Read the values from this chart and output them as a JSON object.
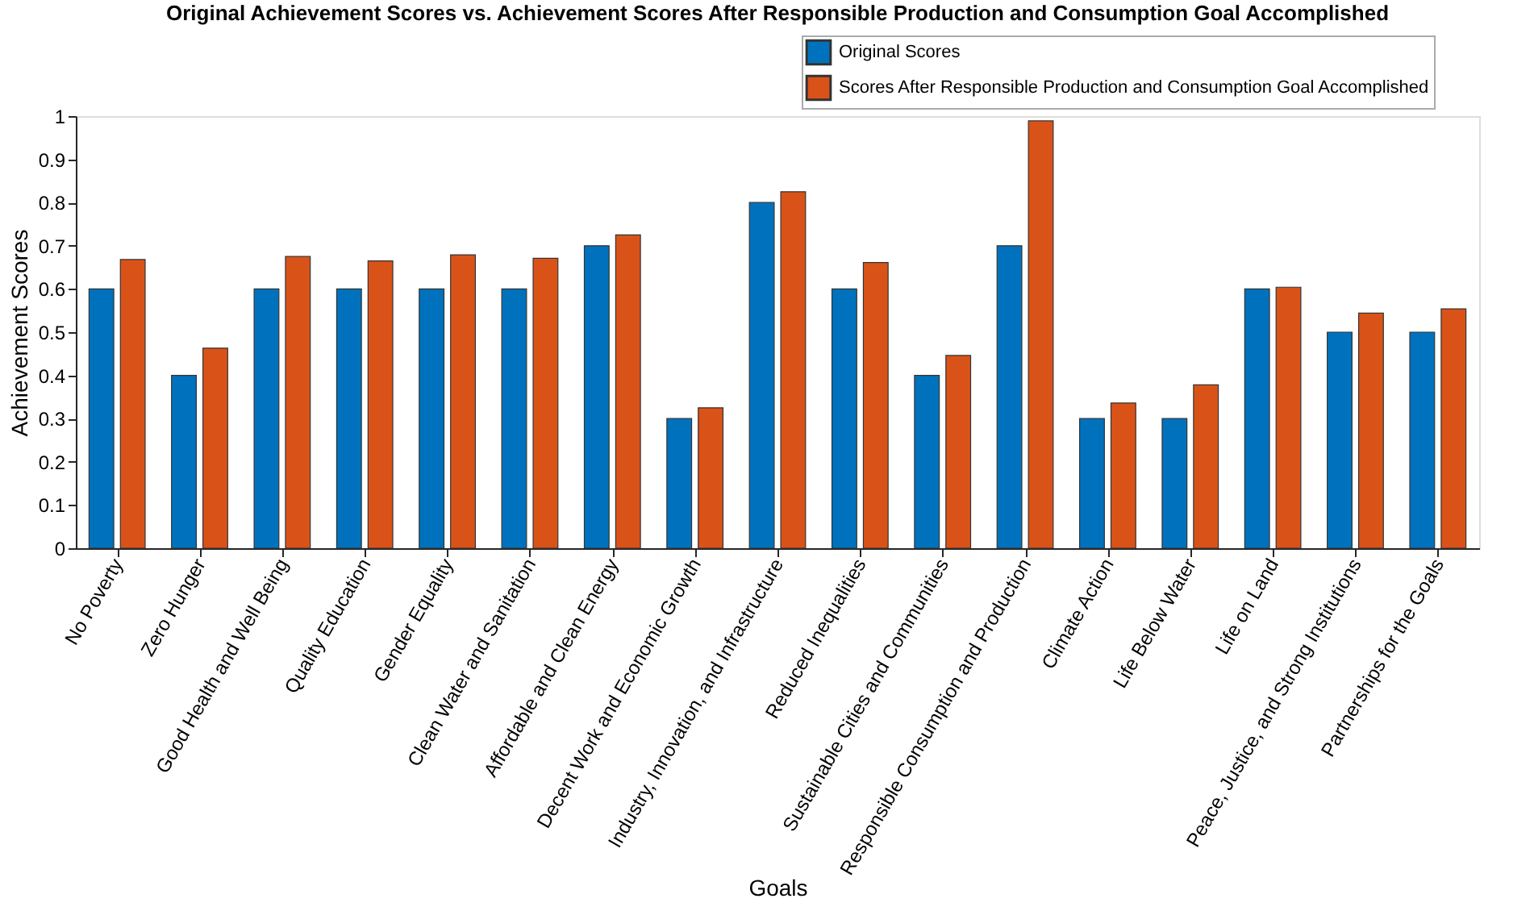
{
  "chart_data": {
    "type": "bar",
    "title": "Original Achievement Scores vs. Achievement Scores After Responsible Production and Consumption Goal Accomplished",
    "xlabel": "Goals",
    "ylabel": "Achievement Scores",
    "categories": [
      "No Poverty",
      "Zero Hunger",
      "Good Health and Well Being",
      "Quality Education",
      "Gender Equality",
      "Clean Water and Sanitation",
      "Affordable and Clean Energy",
      "Decent Work and Economic Growth",
      "Industry, Innovation, and Infrastructure",
      "Reduced Inequalities",
      "Sustainable Cities and Communities",
      "Responsible Consumption and Production",
      "Climate Action",
      "Life Below Water",
      "Life on Land",
      "Peace, Justice, and Strong Institutions",
      "Partnerships for the Goals"
    ],
    "series": [
      {
        "name": "Original Scores",
        "color": "#0072bd",
        "values": [
          0.6,
          0.4,
          0.6,
          0.6,
          0.6,
          0.6,
          0.7,
          0.3,
          0.8,
          0.6,
          0.4,
          0.7,
          0.3,
          0.3,
          0.6,
          0.5,
          0.5
        ]
      },
      {
        "name": "Scores After Responsible Production and Consumption Goal Accomplished",
        "color": "#d95319",
        "values": [
          0.668,
          0.463,
          0.675,
          0.665,
          0.679,
          0.671,
          0.725,
          0.325,
          0.825,
          0.661,
          0.446,
          0.989,
          0.336,
          0.378,
          0.604,
          0.544,
          0.554
        ]
      }
    ],
    "ylim": [
      0,
      1
    ],
    "yticks": [
      0,
      0.1,
      0.2,
      0.3,
      0.4,
      0.5,
      0.6,
      0.7,
      0.8,
      0.9,
      1
    ],
    "grid": false,
    "legend": "top right"
  }
}
